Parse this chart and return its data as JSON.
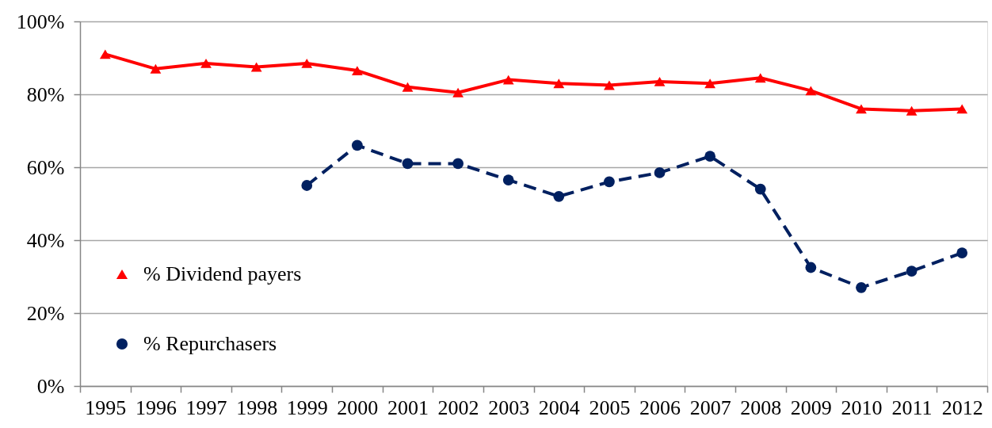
{
  "chart_data": {
    "type": "line",
    "categories": [
      "1995",
      "1996",
      "1997",
      "1998",
      "1999",
      "2000",
      "2001",
      "2002",
      "2003",
      "2004",
      "2005",
      "2006",
      "2007",
      "2008",
      "2009",
      "2010",
      "2011",
      "2012"
    ],
    "series": [
      {
        "name": "% Dividend payers",
        "color": "#ff0000",
        "marker": "triangle",
        "line_style": "solid",
        "values": [
          91,
          87,
          88.5,
          87.5,
          88.5,
          86.5,
          82,
          80.5,
          84,
          83,
          82.5,
          83.5,
          83,
          84.5,
          81,
          76,
          75.5,
          76
        ]
      },
      {
        "name": "% Repurchasers",
        "color": "#002060",
        "marker": "circle",
        "line_style": "dashed",
        "values": [
          null,
          null,
          null,
          null,
          55,
          66,
          61,
          61,
          56.5,
          52,
          56,
          58.5,
          63,
          54,
          32.5,
          27,
          31.5,
          36.5
        ]
      }
    ],
    "ylim": [
      0,
      100
    ],
    "yticks": [
      {
        "value": 0,
        "label": "0%"
      },
      {
        "value": 20,
        "label": "20%"
      },
      {
        "value": 40,
        "label": "40%"
      },
      {
        "value": 60,
        "label": "60%"
      },
      {
        "value": 80,
        "label": "80%"
      },
      {
        "value": 100,
        "label": "100%"
      }
    ],
    "grid": "y",
    "legend": "bottom left"
  }
}
